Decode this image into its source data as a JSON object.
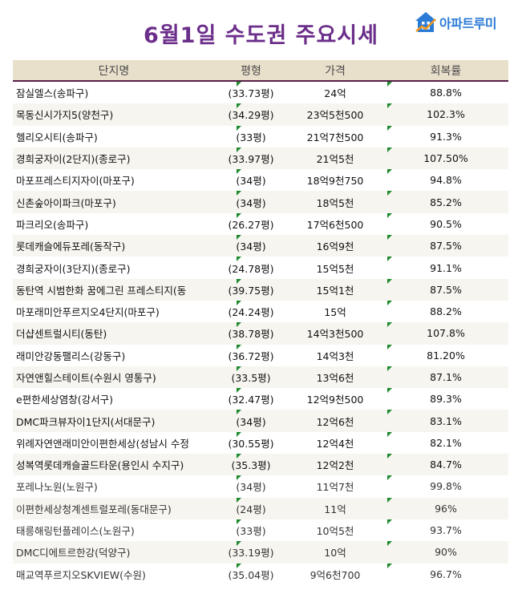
{
  "title": "6월1일 수도권 주요시세",
  "logo": {
    "text": "아파트루미",
    "icon": "house-icon",
    "color": "#2b7bd6"
  },
  "table": {
    "headers": [
      "단지명",
      "평형",
      "가격",
      "회복률"
    ],
    "rows": [
      {
        "name": "잠실엘스(송파구)",
        "size": "(33.73평)",
        "price": "24억",
        "rate": "88.8%"
      },
      {
        "name": "목동신시가지5(양천구)",
        "size": "(34.29평)",
        "price": "23억5천500",
        "rate": "102.3%"
      },
      {
        "name": "헬리오시티(송파구)",
        "size": "(33평)",
        "price": "21억7천500",
        "rate": "91.3%"
      },
      {
        "name": "경희궁자이(2단지)(종로구)",
        "size": "(33.97평)",
        "price": "21억5천",
        "rate": "107.50%"
      },
      {
        "name": "마포프레스티지자이(마포구)",
        "size": "(34평)",
        "price": "18억9천750",
        "rate": "94.8%"
      },
      {
        "name": "신촌숲아이파크(마포구)",
        "size": "(34평)",
        "price": "18억5천",
        "rate": "85.2%"
      },
      {
        "name": "파크리오(송파구)",
        "size": "(26.27평)",
        "price": "17억6천500",
        "rate": "90.5%"
      },
      {
        "name": "롯데캐슬에듀포레(동작구)",
        "size": "(34평)",
        "price": "16억9천",
        "rate": "87.5%"
      },
      {
        "name": "경희궁자이(3단지)(종로구)",
        "size": "(24.78평)",
        "price": "15억5천",
        "rate": "91.1%"
      },
      {
        "name": "동탄역 시범한화 꿈에그린 프레스티지(동",
        "size": "(39.75평)",
        "price": "15억1천",
        "rate": "87.5%"
      },
      {
        "name": "마포래미안푸르지오4단지(마포구)",
        "size": "(24.24평)",
        "price": "15억",
        "rate": "88.2%"
      },
      {
        "name": "더샵센트럴시티(동탄)",
        "size": "(38.78평)",
        "price": "14억3천500",
        "rate": "107.8%"
      },
      {
        "name": "래미안강동팰리스(강동구)",
        "size": "(36.72평)",
        "price": "14억3천",
        "rate": "81.20%"
      },
      {
        "name": "자연앤힐스테이트(수원시 영통구)",
        "size": "(33.5평)",
        "price": "13억6천",
        "rate": "87.1%"
      },
      {
        "name": "e편한세상염창(강서구)",
        "size": "(32.47평)",
        "price": "12억9천500",
        "rate": "89.3%"
      },
      {
        "name": "DMC파크뷰자이1단지(서대문구)",
        "size": "(34평)",
        "price": "12억6천",
        "rate": "83.1%"
      },
      {
        "name": "위례자연앤래미안이편한세상(성남시 수정",
        "size": "(30.55평)",
        "price": "12억4천",
        "rate": "82.1%"
      },
      {
        "name": "성복역롯데캐슬골드타운(용인시 수지구)",
        "size": "(35.3평)",
        "price": "12억2천",
        "rate": "84.7%"
      },
      {
        "name": "포레나노원(노원구)",
        "size": "(34평)",
        "price": "11억7천",
        "rate": "99.8%"
      },
      {
        "name": "이편한세상청계센트럴포레(동대문구)",
        "size": "(24평)",
        "price": "11억",
        "rate": "96%"
      },
      {
        "name": "태릉해링턴플레이스(노원구)",
        "size": "(33평)",
        "price": "10억5천",
        "rate": "93.7%"
      },
      {
        "name": "DMC디에트르한강(덕양구)",
        "size": "(33.19평)",
        "price": "10억",
        "rate": "90%"
      },
      {
        "name": "매교역푸르지오SKVIEW(수원)",
        "size": "(35.04평)",
        "price": "9억6천700",
        "rate": "96.7%"
      }
    ]
  }
}
